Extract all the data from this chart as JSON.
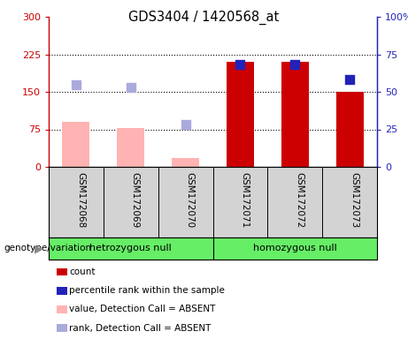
{
  "title": "GDS3404 / 1420568_at",
  "samples": [
    "GSM172068",
    "GSM172069",
    "GSM172070",
    "GSM172071",
    "GSM172072",
    "GSM172073"
  ],
  "bar_values": [
    90,
    78,
    18,
    210,
    210,
    150
  ],
  "bar_colors": [
    "#ffb3b3",
    "#ffb3b3",
    "#ffb3b3",
    "#cc0000",
    "#cc0000",
    "#cc0000"
  ],
  "dot_values": [
    55,
    53,
    28,
    68,
    68,
    58
  ],
  "dot_colors": [
    "#aaaadd",
    "#aaaadd",
    "#aaaadd",
    "#2222bb",
    "#2222bb",
    "#2222bb"
  ],
  "ylim_left": [
    0,
    300
  ],
  "ylim_right": [
    0,
    100
  ],
  "yticks_left": [
    0,
    75,
    150,
    225,
    300
  ],
  "yticks_right": [
    0,
    25,
    50,
    75,
    100
  ],
  "ytick_labels_left": [
    "0",
    "75",
    "150",
    "225",
    "300"
  ],
  "ytick_labels_right": [
    "0",
    "25",
    "50",
    "75",
    "100%"
  ],
  "hlines": [
    75,
    150,
    225
  ],
  "group1_label": "hetrozygous null",
  "group2_label": "homozygous null",
  "group1_indices": [
    0,
    1,
    2
  ],
  "group2_indices": [
    3,
    4,
    5
  ],
  "genotype_label": "genotype/variation",
  "legend_items": [
    {
      "label": "count",
      "color": "#cc0000"
    },
    {
      "label": "percentile rank within the sample",
      "color": "#2222bb"
    },
    {
      "label": "value, Detection Call = ABSENT",
      "color": "#ffb3b3"
    },
    {
      "label": "rank, Detection Call = ABSENT",
      "color": "#aaaadd"
    }
  ],
  "plot_bg": "#ffffff",
  "left_axis_color": "#cc0000",
  "right_axis_color": "#2222bb",
  "bar_width": 0.5,
  "dot_size": 55,
  "label_bg": "#d3d3d3",
  "group_bg": "#66ee66"
}
